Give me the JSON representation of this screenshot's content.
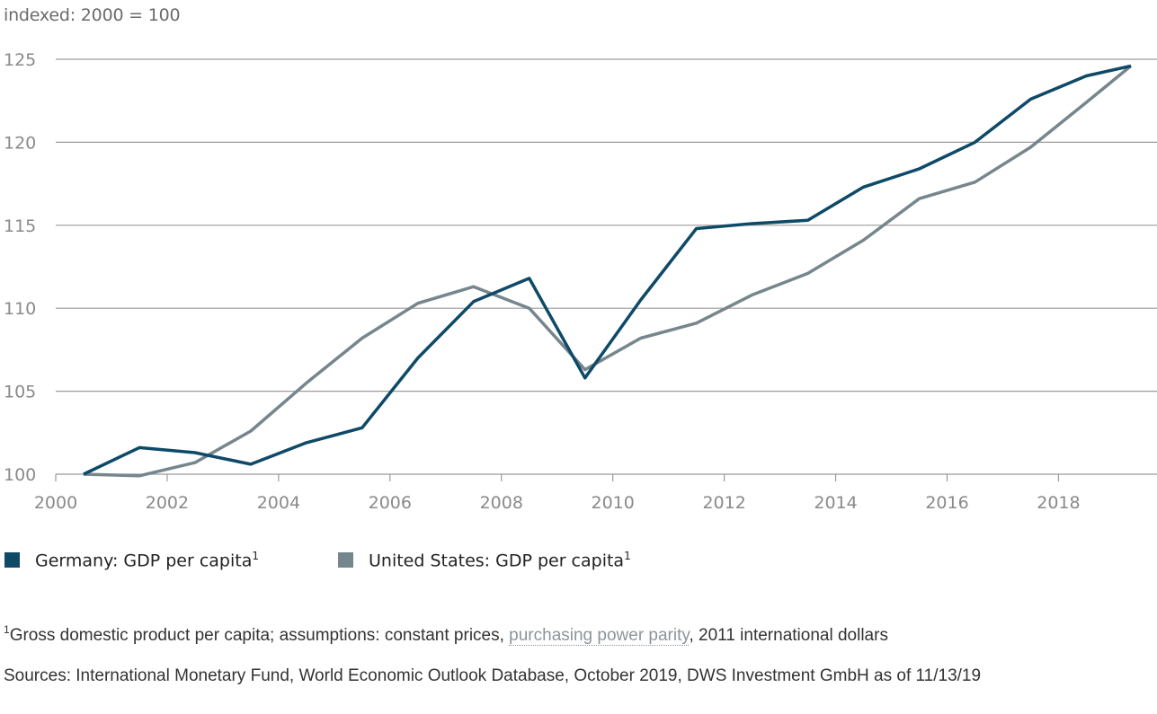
{
  "chart_data": {
    "type": "line",
    "ylabel": "indexed: 2000 = 100",
    "ylim": [
      100,
      125
    ],
    "xlim": [
      2000,
      2019.3
    ],
    "yticks": [
      100,
      105,
      110,
      115,
      120,
      125
    ],
    "xticks": [
      2000,
      2002,
      2004,
      2006,
      2008,
      2010,
      2012,
      2014,
      2016,
      2018
    ],
    "grid": "horizontal",
    "legend_position": "bottom",
    "series": [
      {
        "name": "Germany: GDP per capita",
        "name_sup": "1",
        "color": "#0e4a67",
        "x": [
          2000.5,
          2001.5,
          2002.5,
          2003.5,
          2004.5,
          2005.5,
          2006.5,
          2007.5,
          2008.5,
          2009.5,
          2010.5,
          2011.5,
          2012.5,
          2013.5,
          2014.5,
          2015.5,
          2016.5,
          2017.5,
          2018.5,
          2019.3
        ],
        "values": [
          100.0,
          101.6,
          101.3,
          100.6,
          101.9,
          102.8,
          107.0,
          110.4,
          111.8,
          105.8,
          110.5,
          114.8,
          115.1,
          115.3,
          117.3,
          118.4,
          120.0,
          122.6,
          124.0,
          124.6
        ]
      },
      {
        "name": "United States: GDP per capita",
        "name_sup": "1",
        "color": "#75868d",
        "x": [
          2000.5,
          2001.5,
          2002.5,
          2003.5,
          2004.5,
          2005.5,
          2006.5,
          2007.5,
          2008.5,
          2009.5,
          2010.5,
          2011.5,
          2012.5,
          2013.5,
          2014.5,
          2015.5,
          2016.5,
          2017.5,
          2018.5,
          2019.3
        ],
        "values": [
          100.0,
          99.9,
          100.7,
          102.6,
          105.5,
          108.2,
          110.3,
          111.3,
          110.0,
          106.3,
          108.2,
          109.1,
          110.8,
          112.1,
          114.1,
          116.6,
          117.6,
          119.7,
          122.4,
          124.6
        ]
      }
    ]
  },
  "footnote": {
    "sup": "1",
    "text_before": "Gross domestic product per capita; assumptions: constant prices, ",
    "link_text": "purchasing power parity",
    "text_after": ", 2011 international dollars"
  },
  "sources": "Sources: International Monetary Fund, World Economic Outlook Database, October 2019, DWS Investment GmbH as of 11/13/19"
}
